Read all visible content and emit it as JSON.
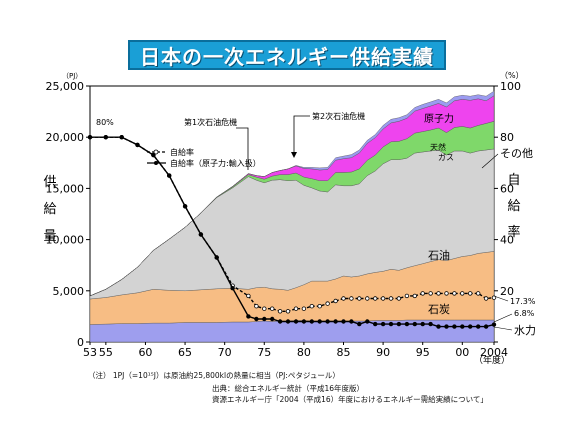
{
  "title": "日本の一次エネルギー供給実績",
  "chart_data": {
    "type": "area",
    "left_axis": {
      "unit": "（PJ）",
      "label_chars": [
        "供",
        "給",
        "量"
      ],
      "ticks": [
        0,
        5000,
        10000,
        15000,
        20000,
        25000
      ],
      "tick_labels": [
        "0",
        "5,000",
        "10,000",
        "15,000",
        "20,000",
        "25,000"
      ],
      "ylim": [
        0,
        25000
      ]
    },
    "right_axis": {
      "unit": "（%）",
      "label_chars": [
        "自",
        "給",
        "率"
      ],
      "ticks": [
        0,
        20,
        40,
        60,
        80,
        100
      ],
      "tick_labels": [
        "",
        "20",
        "40",
        "60",
        "80",
        "100"
      ],
      "ylim": [
        0,
        100
      ]
    },
    "x_axis": {
      "xlim": [
        1953,
        2004
      ],
      "tick_labels": [
        {
          "x": 1953,
          "label": "53"
        },
        {
          "x": 1955,
          "label": "55"
        },
        {
          "x": 1960,
          "label": "60"
        },
        {
          "x": 1965,
          "label": "65"
        },
        {
          "x": 1970,
          "label": "70"
        },
        {
          "x": 1975,
          "label": "75"
        },
        {
          "x": 1980,
          "label": "80"
        },
        {
          "x": 1985,
          "label": "85"
        },
        {
          "x": 1990,
          "label": "90"
        },
        {
          "x": 1995,
          "label": "95"
        },
        {
          "x": 2000,
          "label": "00"
        },
        {
          "x": 2004,
          "label": "2004"
        }
      ],
      "unit_label": "（年度）"
    },
    "x": [
      1953,
      1955,
      1957,
      1959,
      1961,
      1963,
      1965,
      1967,
      1969,
      1971,
      1973,
      1974,
      1975,
      1976,
      1977,
      1978,
      1979,
      1980,
      1981,
      1982,
      1983,
      1984,
      1985,
      1986,
      1987,
      1988,
      1989,
      1990,
      1991,
      1992,
      1993,
      1994,
      1995,
      1996,
      1997,
      1998,
      1999,
      2000,
      2001,
      2002,
      2003,
      2004
    ],
    "series": [
      {
        "name": "水力",
        "color": "#9e9eee",
        "values": [
          1700,
          1750,
          1800,
          1800,
          1850,
          1850,
          1900,
          1900,
          1900,
          1950,
          1950,
          2000,
          2050,
          2000,
          2050,
          2050,
          2100,
          2100,
          2050,
          2050,
          2050,
          2050,
          2050,
          2050,
          2050,
          2050,
          2100,
          2100,
          2100,
          2100,
          2150,
          2150,
          2150,
          2150,
          2150,
          2150,
          2150,
          2150,
          2150,
          2150,
          2150,
          2150
        ]
      },
      {
        "name": "石炭",
        "color": "#f7bd84",
        "values": [
          2500,
          2600,
          2800,
          3000,
          3300,
          3200,
          3100,
          3200,
          3300,
          3300,
          3200,
          3300,
          3300,
          3200,
          3100,
          3000,
          3200,
          3500,
          3900,
          3900,
          3900,
          4100,
          4400,
          4300,
          4400,
          4600,
          4700,
          4800,
          5000,
          4900,
          5100,
          5300,
          5500,
          5700,
          5900,
          5800,
          6000,
          6200,
          6300,
          6500,
          6600,
          6700
        ]
      },
      {
        "name": "石油",
        "color": "#d3d3d3",
        "values": [
          300,
          800,
          1500,
          2500,
          3800,
          5000,
          6200,
          7500,
          8900,
          9800,
          11000,
          10500,
          10200,
          10600,
          10700,
          10700,
          10500,
          9700,
          9100,
          8800,
          8700,
          9200,
          8800,
          8900,
          9000,
          9600,
          9900,
          10500,
          10700,
          10800,
          10700,
          11000,
          10900,
          10800,
          10700,
          10300,
          10500,
          10300,
          10000,
          10000,
          10000,
          10000
        ]
      },
      {
        "name": "天然ガス",
        "color": "#7fd86a",
        "values": [
          0,
          0,
          0,
          0,
          0,
          0,
          0,
          0,
          50,
          100,
          200,
          300,
          350,
          400,
          500,
          600,
          700,
          800,
          900,
          1000,
          1100,
          1200,
          1300,
          1350,
          1450,
          1500,
          1550,
          1650,
          1750,
          1800,
          1900,
          1950,
          2000,
          2050,
          2150,
          2200,
          2300,
          2400,
          2450,
          2500,
          2600,
          2700
        ]
      },
      {
        "name": "原子力",
        "color": "#ee44ee",
        "values": [
          0,
          0,
          0,
          0,
          0,
          0,
          0,
          0,
          0,
          50,
          100,
          150,
          250,
          350,
          400,
          550,
          700,
          850,
          950,
          1050,
          1100,
          1200,
          1350,
          1400,
          1550,
          1650,
          1700,
          1750,
          1850,
          1950,
          2000,
          2150,
          2250,
          2350,
          2400,
          2500,
          2600,
          2650,
          2700,
          2600,
          2200,
          2500
        ]
      },
      {
        "name": "その他",
        "color": "#9b9bf0",
        "values": [
          0,
          0,
          0,
          0,
          0,
          0,
          0,
          0,
          0,
          0,
          0,
          0,
          0,
          0,
          0,
          0,
          50,
          100,
          150,
          200,
          200,
          250,
          250,
          300,
          300,
          300,
          300,
          350,
          350,
          350,
          350,
          350,
          400,
          400,
          400,
          400,
          400,
          400,
          400,
          400,
          450,
          450
        ]
      }
    ],
    "self_sufficiency": {
      "name": "自給率",
      "values": [
        80,
        80,
        80,
        77,
        73,
        65,
        53,
        42,
        33,
        22,
        18,
        14,
        13,
        13,
        12,
        12,
        13,
        13,
        14,
        14,
        15,
        16,
        17,
        17,
        17,
        17,
        17,
        17,
        17,
        17,
        18,
        18,
        19,
        19,
        19,
        19,
        19,
        19,
        19,
        19,
        17,
        17.3
      ]
    },
    "self_sufficiency_excl_nuclear": {
      "name": "自給率（原子力:輸入扱）",
      "values": [
        80,
        80,
        80,
        77,
        73,
        65,
        53,
        42,
        33,
        21,
        10,
        9,
        9,
        9,
        8,
        8,
        8,
        8,
        8,
        8,
        8,
        8,
        8,
        8,
        7,
        8,
        7,
        7,
        7,
        7,
        7,
        7,
        7,
        7,
        6,
        6,
        6,
        6,
        6,
        6,
        6,
        6.8
      ]
    },
    "annotations": [
      {
        "text": "80%",
        "x": 1955.2,
        "y": 84
      },
      {
        "text": "第1次石油危機",
        "x": 1973
      },
      {
        "text": "第2次石油危機",
        "x": 1979
      },
      {
        "text": "17.3%",
        "x": 2004
      },
      {
        "text": "6.8%",
        "x": 2004
      }
    ],
    "area_labels": {
      "oil": "石油",
      "coal": "石炭",
      "hydro": "水力",
      "gas": "天然ガス",
      "nuclear": "原子力",
      "other": "その他"
    },
    "legend": {
      "placement": "upper-left",
      "items": [
        "自給率",
        "自給率（原子力:輸入扱）"
      ]
    }
  },
  "notes": {
    "pj_note": "（注） 1PJ（=10¹⁵J）は原油約25,800klの熱量に相当（PJ:ペタジュール）",
    "source_label": "出典：総合エネルギー統計（平成16年度版）",
    "source_line2": "資源エネルギー庁「2004（平成16）年度におけるエネルギー需給実績について」"
  }
}
